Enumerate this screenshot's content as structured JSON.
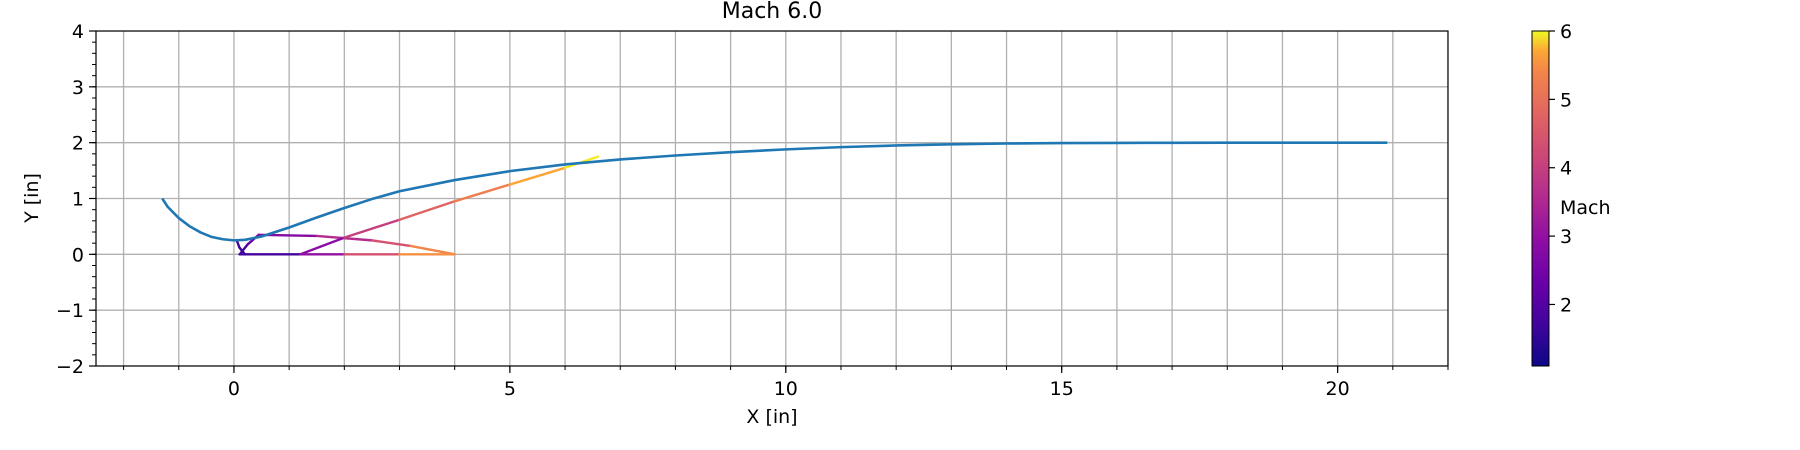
{
  "chart_data": {
    "type": "line",
    "title": "Mach 6.0",
    "xlabel": "X [in]",
    "ylabel": "Y [in]",
    "xlim": [
      -2.5,
      22.0
    ],
    "ylim": [
      -2.0,
      4.0
    ],
    "xticks": [
      0,
      5,
      10,
      15,
      20
    ],
    "xtick_labels": [
      "0",
      "5",
      "10",
      "15",
      "20"
    ],
    "yticks": [
      -2,
      -1,
      0,
      1,
      2,
      3,
      4
    ],
    "ytick_labels": [
      "−2",
      "−1",
      "0",
      "1",
      "2",
      "3",
      "4"
    ],
    "x_minor_step": 1,
    "y_minor_step": 0.2,
    "grid": true,
    "series": [
      {
        "kind": "contour",
        "color": "#1f77b4",
        "x": [
          -1.3,
          -1.2,
          -1.0,
          -0.8,
          -0.6,
          -0.4,
          -0.2,
          0.0,
          0.2,
          0.5,
          1.0,
          1.5,
          2.0,
          2.5,
          3.0,
          4.0,
          5.0,
          6.0,
          7.0,
          8.0,
          9.0,
          10.0,
          11.0,
          12.0,
          13.0,
          14.0,
          15.0,
          16.0,
          17.0,
          18.0,
          19.0,
          20.0,
          20.9
        ],
        "y": [
          1.0,
          0.85,
          0.65,
          0.5,
          0.39,
          0.31,
          0.27,
          0.25,
          0.26,
          0.32,
          0.48,
          0.66,
          0.83,
          0.99,
          1.13,
          1.33,
          1.49,
          1.61,
          1.7,
          1.77,
          1.83,
          1.88,
          1.92,
          1.95,
          1.97,
          1.985,
          1.992,
          1.996,
          1.998,
          2.0,
          2.0,
          2.0,
          2.0
        ]
      }
    ],
    "mach_lines": [
      {
        "x": [
          0.05,
          0.1,
          0.2
        ],
        "y": [
          0.25,
          0.12,
          0.0
        ],
        "mach": [
          1.8,
          1.6,
          1.5
        ]
      },
      {
        "x": [
          0.1,
          1.2
        ],
        "y": [
          0.0,
          0.0
        ],
        "mach": [
          1.5,
          2.0
        ]
      },
      {
        "x": [
          0.12,
          0.25,
          0.45
        ],
        "y": [
          0.02,
          0.18,
          0.35
        ],
        "mach": [
          1.6,
          2.0,
          2.4
        ]
      },
      {
        "x": [
          0.45,
          1.5,
          2.5,
          3.2,
          4.0
        ],
        "y": [
          0.35,
          0.33,
          0.25,
          0.15,
          0.0
        ],
        "mach": [
          2.4,
          3.2,
          4.0,
          4.8,
          6.0
        ]
      },
      {
        "x": [
          1.2,
          2.0,
          3.0,
          4.0,
          5.0,
          6.0,
          6.6
        ],
        "y": [
          0.0,
          0.3,
          0.62,
          0.95,
          1.25,
          1.55,
          1.75
        ],
        "mach": [
          2.2,
          3.5,
          4.5,
          5.0,
          5.5,
          5.9,
          6.0
        ]
      },
      {
        "x": [
          1.2,
          2.0,
          3.0,
          4.0
        ],
        "y": [
          0.0,
          0.0,
          0.0,
          0.0
        ],
        "mach": [
          2.2,
          3.8,
          5.0,
          6.0
        ]
      }
    ],
    "colorbar": {
      "label": "Mach",
      "colormap": "plasma",
      "range": [
        1.1,
        6.0
      ],
      "ticks": [
        2,
        3,
        4,
        5,
        6
      ],
      "tick_labels": [
        "2",
        "3",
        "4",
        "5",
        "6"
      ]
    }
  }
}
